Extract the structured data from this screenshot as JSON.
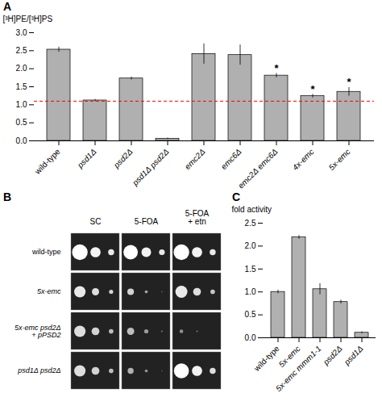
{
  "chart_data": [
    {
      "type": "bar",
      "title": "A",
      "categories": [
        "wild-type",
        "psd1Δ",
        "psd2Δ",
        "psd1Δ psd2Δ",
        "emc2Δ",
        "emc6Δ",
        "emc2Δ emc6Δ",
        "4x-emc",
        "5x-emc"
      ],
      "values": [
        2.53,
        1.12,
        1.73,
        0.06,
        2.41,
        2.38,
        1.81,
        1.24,
        1.36
      ],
      "errors": [
        0.07,
        0.03,
        0.04,
        0.02,
        0.28,
        0.28,
        0.06,
        0.05,
        0.12
      ],
      "color": "#b0b0b0",
      "ylabel": "[³H]PE/[³H]PS",
      "ylim": [
        0,
        3.0
      ],
      "yticks": [
        {
          "value": 0,
          "label": "0.0"
        },
        0.5,
        {
          "value": 1,
          "label": "1.0"
        },
        1.5,
        {
          "value": 2,
          "label": "2.0"
        },
        2.5,
        {
          "value": 3,
          "label": "3.0"
        }
      ],
      "annotations": [
        {
          "type": "hline",
          "y": 1.1,
          "color": "#ff0000",
          "line_style": "dashed"
        },
        {
          "text": "*",
          "category": "emc2Δ emc6Δ"
        },
        {
          "text": "*",
          "category": "4x-emc"
        },
        {
          "text": "*",
          "category": "5x-emc"
        }
      ]
    },
    {
      "type": "spot_assay",
      "title": "B",
      "categories": [
        "wild-type",
        "5x-emc",
        "5x-emc psd2Δ\n+ pPSD2",
        "psd1Δ psd2Δ"
      ],
      "columns": [
        "SC",
        "5-FOA",
        "5-FOA\n+ etn"
      ],
      "spot_sizes": [
        [
          [
            0.13,
            0.085,
            0.05
          ],
          [
            0.12,
            0.08,
            0.048
          ],
          [
            0.13,
            0.085,
            0.05
          ]
        ],
        [
          [
            0.095,
            0.06,
            0.035
          ],
          [
            0.055,
            0.025,
            0.01
          ],
          [
            0.1,
            0.065,
            0.038
          ]
        ],
        [
          [
            0.095,
            0.065,
            0.038
          ],
          [
            0.06,
            0.035,
            0.015
          ],
          [
            0.03,
            0.015,
            0.005
          ]
        ],
        [
          [
            0.095,
            0.065,
            0.038
          ],
          [
            0.05,
            0.025,
            0.01
          ],
          [
            0.125,
            0.085,
            0.05
          ]
        ]
      ],
      "spot_opacities": [
        [
          [
            1.0,
            0.95,
            0.9
          ],
          [
            1.0,
            0.95,
            0.9
          ],
          [
            1.0,
            0.95,
            0.9
          ]
        ],
        [
          [
            0.9,
            0.85,
            0.8
          ],
          [
            0.8,
            0.6,
            0.4
          ],
          [
            0.9,
            0.85,
            0.75
          ]
        ],
        [
          [
            0.85,
            0.8,
            0.7
          ],
          [
            0.7,
            0.55,
            0.35
          ],
          [
            0.5,
            0.35,
            0.2
          ]
        ],
        [
          [
            0.85,
            0.8,
            0.7
          ],
          [
            0.65,
            0.5,
            0.3
          ],
          [
            1.0,
            0.95,
            0.85
          ]
        ]
      ]
    },
    {
      "type": "bar",
      "title": "C",
      "categories": [
        "wild-type",
        "5x-emc",
        "5x-emc mmm1-1",
        "psd2Δ",
        "psd1Δ"
      ],
      "values": [
        1.0,
        2.19,
        1.06,
        0.78,
        0.11
      ],
      "errors": [
        0.04,
        0.04,
        0.12,
        0.04,
        0.02
      ],
      "color": "#b0b0b0",
      "ylabel": "fold activity",
      "ylim": [
        0,
        2.5
      ],
      "yticks": [
        {
          "value": 0,
          "label": "0.0"
        },
        0.5,
        {
          "value": 1,
          "label": "1.0"
        },
        1.5,
        {
          "value": 2,
          "label": "2.0"
        },
        2.5
      ]
    }
  ]
}
